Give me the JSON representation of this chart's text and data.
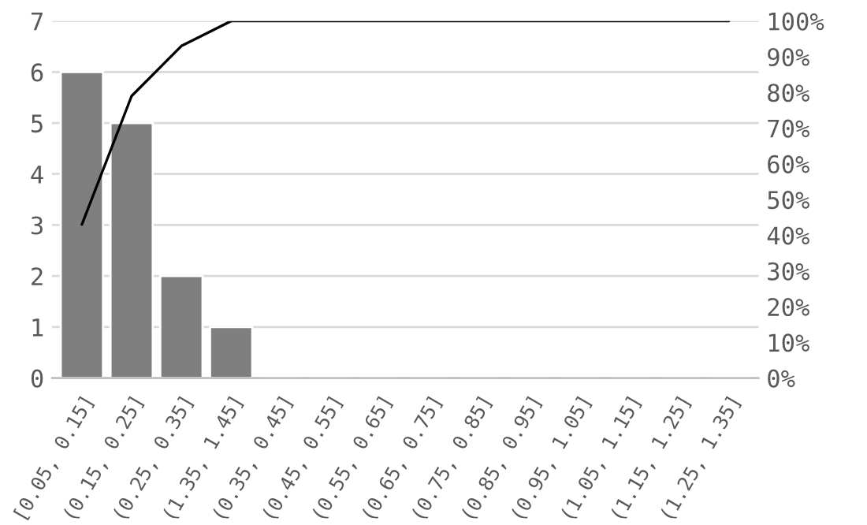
{
  "chart_data": {
    "type": "bar",
    "categories": [
      "[0.05, 0.15]",
      "(0.15, 0.25]",
      "(0.25, 0.35]",
      "(1.35, 1.45]",
      "(0.35, 0.45]",
      "(0.45, 0.55]",
      "(0.55, 0.65]",
      "(0.65, 0.75]",
      "(0.75, 0.85]",
      "(0.85, 0.95]",
      "(0.95, 1.05]",
      "(1.05, 1.15]",
      "(1.15, 1.25]",
      "(1.25, 1.35]"
    ],
    "series": [
      {
        "color": "#7f7f7f",
        "values": [
          6,
          5,
          2,
          1,
          0,
          0,
          0,
          0,
          0,
          0,
          0,
          0,
          0,
          0
        ]
      },
      {
        "type": "line",
        "axis": "y2",
        "color": "#000000",
        "values": [
          43,
          79,
          93,
          100,
          100,
          100,
          100,
          100,
          100,
          100,
          100,
          100,
          100,
          100
        ]
      }
    ],
    "ylim": [
      0,
      7
    ],
    "yticks": [
      0,
      1,
      2,
      3,
      4,
      5,
      6,
      7
    ],
    "y2lim": [
      0,
      100
    ],
    "y2ticks": [
      {
        "value": 0,
        "label": "0%"
      },
      {
        "value": 10,
        "label": "10%"
      },
      {
        "value": 20,
        "label": "20%"
      },
      {
        "value": 30,
        "label": "30%"
      },
      {
        "value": 40,
        "label": "40%"
      },
      {
        "value": 50,
        "label": "50%"
      },
      {
        "value": 60,
        "label": "60%"
      },
      {
        "value": 70,
        "label": "70%"
      },
      {
        "value": 80,
        "label": "80%"
      },
      {
        "value": 90,
        "label": "90%"
      },
      {
        "value": 100,
        "label": "100%"
      }
    ],
    "grid": "y",
    "legend": false
  }
}
